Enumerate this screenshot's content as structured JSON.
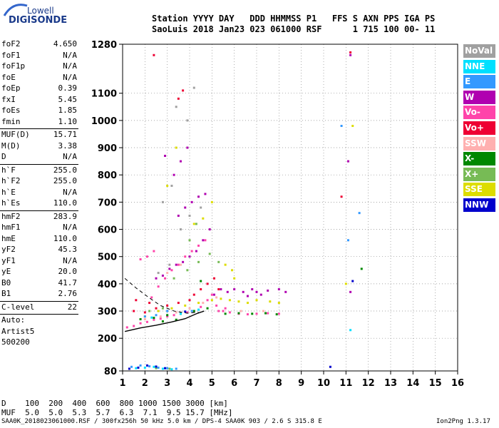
{
  "logo": {
    "line1": "Lowell",
    "line2": "DIGISONDE"
  },
  "header": {
    "row1": "Station YYYY DAY   DDD HHMMSS P1   FFS S AXN PPS IGA PS",
    "row2": "SaoLuis 2018 Jan23 023 061000 RSF      1 715 100 00- 11"
  },
  "params": [
    {
      "name": "foF2",
      "value": "4.650"
    },
    {
      "name": "foF1",
      "value": "N/A"
    },
    {
      "name": "foF1p",
      "value": "N/A"
    },
    {
      "name": "foE",
      "value": "N/A"
    },
    {
      "name": "foEp",
      "value": "0.39"
    },
    {
      "name": "fxI",
      "value": "5.45"
    },
    {
      "name": "foEs",
      "value": "1.85"
    },
    {
      "name": "fmin",
      "value": "1.10"
    },
    {
      "name": "MUF(D)",
      "value": "15.71"
    },
    {
      "name": "M(D)",
      "value": "3.38"
    },
    {
      "name": "D",
      "value": "N/A"
    },
    {
      "name": "h`F",
      "value": "255.0"
    },
    {
      "name": "h`F2",
      "value": "255.0"
    },
    {
      "name": "h`E",
      "value": "N/A"
    },
    {
      "name": "h`Es",
      "value": "110.0"
    },
    {
      "name": "hmF2",
      "value": "283.9"
    },
    {
      "name": "hmF1",
      "value": "N/A"
    },
    {
      "name": "hmE",
      "value": "110.0"
    },
    {
      "name": "yF2",
      "value": "45.3"
    },
    {
      "name": "yF1",
      "value": "N/A"
    },
    {
      "name": "yE",
      "value": "20.0"
    },
    {
      "name": "B0",
      "value": "41.7"
    },
    {
      "name": "B1",
      "value": "2.76"
    },
    {
      "name": "C-level",
      "value": "22"
    },
    {
      "name": "Auto:",
      "value": ""
    },
    {
      "name": "Artist5",
      "value": ""
    },
    {
      "name": "500200",
      "value": ""
    }
  ],
  "legend": [
    {
      "label": "NoVal",
      "color": "#a0a0a0"
    },
    {
      "label": "NNE",
      "color": "#00e0ff"
    },
    {
      "label": "E",
      "color": "#3399ff"
    },
    {
      "label": "W",
      "color": "#b000b0"
    },
    {
      "label": "Vo-",
      "color": "#ff44aa"
    },
    {
      "label": "Vo+",
      "color": "#ee0033"
    },
    {
      "label": "SSW",
      "color": "#ffb0b0"
    },
    {
      "label": "X-",
      "color": "#008800"
    },
    {
      "label": "X+",
      "color": "#77bb55"
    },
    {
      "label": "SSE",
      "color": "#dddd00"
    },
    {
      "label": "NNW",
      "color": "#0000cc"
    }
  ],
  "mufTable": {
    "dRow": "D    100  200  400  600  800 1000 1500 3000 [km]",
    "mufRow": "MUF  5.0  5.0  5.3  5.7  6.3  7.1  9.5 15.7 [MHz]"
  },
  "footer": {
    "left": "SAA0K_2018023061000.RSF / 300fx256h 50 kHz 5.0 km / DPS-4 SAA0K 903 / 2.6 S 315.8 E",
    "right": "Ion2Png 1.3.17"
  },
  "chart_data": {
    "type": "scatter",
    "title": "",
    "xlabel": "",
    "ylabel": "",
    "xlim": [
      1,
      16
    ],
    "ylim": [
      80,
      1280
    ],
    "xticks": [
      "1",
      "2",
      "3",
      "4",
      "5",
      "6",
      "7",
      "8",
      "9",
      "10",
      "11",
      "12",
      "13",
      "14",
      "15",
      "16"
    ],
    "yticks": [
      "80",
      "200",
      "300",
      "400",
      "500",
      "600",
      "700",
      "800",
      "900",
      "1000",
      "1100",
      "1280"
    ],
    "ytick_values": [
      80,
      200,
      300,
      400,
      500,
      600,
      700,
      800,
      900,
      1000,
      1100,
      1280
    ],
    "grid": true,
    "profile_line": [
      [
        1.1,
        225
      ],
      [
        1.8,
        238
      ],
      [
        2.5,
        248
      ],
      [
        3.2,
        260
      ],
      [
        3.8,
        272
      ],
      [
        4.3,
        290
      ],
      [
        4.65,
        300
      ]
    ],
    "dashed_line": [
      [
        1.1,
        420
      ],
      [
        1.6,
        385
      ],
      [
        2.2,
        348
      ],
      [
        2.7,
        320
      ],
      [
        3.3,
        300
      ],
      [
        3.9,
        292
      ],
      [
        4.4,
        296
      ]
    ],
    "series": [
      {
        "color": "#ff44aa",
        "points": [
          [
            1.2,
            240
          ],
          [
            1.5,
            245
          ],
          [
            1.8,
            255
          ],
          [
            2.1,
            260
          ],
          [
            2.4,
            268
          ],
          [
            2.7,
            272
          ],
          [
            3.0,
            280
          ],
          [
            3.3,
            285
          ],
          [
            3.6,
            290
          ],
          [
            3.9,
            295
          ],
          [
            4.2,
            300
          ],
          [
            4.5,
            315
          ],
          [
            4.8,
            340
          ],
          [
            5.0,
            360
          ],
          [
            5.2,
            320
          ],
          [
            5.5,
            300
          ],
          [
            5.8,
            295
          ],
          [
            6.2,
            290
          ],
          [
            6.6,
            288
          ],
          [
            7.0,
            290
          ],
          [
            7.5,
            292
          ],
          [
            8.0,
            290
          ],
          [
            2.3,
            350
          ],
          [
            2.6,
            390
          ],
          [
            2.9,
            420
          ],
          [
            3.2,
            450
          ],
          [
            3.5,
            470
          ],
          [
            3.8,
            500
          ],
          [
            4.1,
            520
          ],
          [
            4.4,
            540
          ],
          [
            4.7,
            560
          ],
          [
            1.8,
            490
          ],
          [
            2.1,
            500
          ],
          [
            2.4,
            520
          ],
          [
            5.3,
            300
          ],
          [
            5.6,
            310
          ]
        ]
      },
      {
        "color": "#b000b0",
        "points": [
          [
            2.5,
            420
          ],
          [
            2.8,
            430
          ],
          [
            3.1,
            455
          ],
          [
            3.4,
            470
          ],
          [
            3.7,
            480
          ],
          [
            4.0,
            500
          ],
          [
            4.3,
            520
          ],
          [
            4.6,
            560
          ],
          [
            4.9,
            600
          ],
          [
            5.1,
            360
          ],
          [
            5.4,
            380
          ],
          [
            5.7,
            370
          ],
          [
            6.0,
            380
          ],
          [
            6.4,
            370
          ],
          [
            6.8,
            380
          ],
          [
            7.0,
            370
          ],
          [
            7.5,
            375
          ],
          [
            8.0,
            380
          ],
          [
            8.3,
            370
          ],
          [
            7.2,
            360
          ],
          [
            6.6,
            355
          ],
          [
            3.5,
            650
          ],
          [
            3.8,
            680
          ],
          [
            4.1,
            700
          ],
          [
            4.4,
            720
          ],
          [
            4.7,
            730
          ],
          [
            3.3,
            800
          ],
          [
            3.6,
            850
          ],
          [
            3.9,
            900
          ],
          [
            2.9,
            870
          ],
          [
            11.1,
            850
          ],
          [
            11.2,
            1240
          ],
          [
            11.2,
            370
          ]
        ]
      },
      {
        "color": "#ee0033",
        "points": [
          [
            1.5,
            300
          ],
          [
            2.0,
            295
          ],
          [
            2.5,
            310
          ],
          [
            3.0,
            320
          ],
          [
            3.5,
            330
          ],
          [
            4.0,
            340
          ],
          [
            4.5,
            380
          ],
          [
            4.8,
            400
          ],
          [
            5.1,
            420
          ],
          [
            5.3,
            380
          ],
          [
            4.2,
            360
          ],
          [
            2.2,
            330
          ],
          [
            1.6,
            340
          ],
          [
            10.8,
            720
          ],
          [
            11.2,
            1250
          ],
          [
            3.5,
            1080
          ],
          [
            3.7,
            1110
          ],
          [
            2.4,
            1240
          ]
        ]
      },
      {
        "color": "#dddd00",
        "points": [
          [
            2.0,
            280
          ],
          [
            2.6,
            300
          ],
          [
            3.2,
            310
          ],
          [
            3.8,
            320
          ],
          [
            4.4,
            330
          ],
          [
            5.0,
            340
          ],
          [
            5.4,
            345
          ],
          [
            5.8,
            340
          ],
          [
            6.2,
            335
          ],
          [
            6.6,
            330
          ],
          [
            7.0,
            340
          ],
          [
            7.6,
            335
          ],
          [
            8.0,
            330
          ],
          [
            5.6,
            470
          ],
          [
            5.9,
            450
          ],
          [
            6.0,
            420
          ],
          [
            4.2,
            620
          ],
          [
            4.6,
            640
          ],
          [
            5.0,
            700
          ],
          [
            11.3,
            980
          ],
          [
            11.0,
            400
          ],
          [
            3.0,
            760
          ],
          [
            3.4,
            900
          ]
        ]
      },
      {
        "color": "#008800",
        "points": [
          [
            1.8,
            270
          ],
          [
            2.4,
            275
          ],
          [
            3.0,
            285
          ],
          [
            3.6,
            290
          ],
          [
            4.2,
            300
          ],
          [
            4.8,
            310
          ],
          [
            5.6,
            290
          ],
          [
            6.2,
            292
          ],
          [
            6.8,
            290
          ],
          [
            7.4,
            292
          ],
          [
            7.9,
            288
          ],
          [
            11.7,
            455
          ],
          [
            4.5,
            410
          ],
          [
            2.8,
            262
          ],
          [
            3.4,
            268
          ]
        ]
      },
      {
        "color": "#77bb55",
        "points": [
          [
            2.2,
            300
          ],
          [
            2.8,
            310
          ],
          [
            3.3,
            420
          ],
          [
            3.9,
            450
          ],
          [
            4.4,
            480
          ],
          [
            4.9,
            510
          ],
          [
            5.3,
            480
          ],
          [
            2.5,
            90
          ],
          [
            3.1,
            88
          ],
          [
            4.0,
            560
          ],
          [
            4.3,
            620
          ]
        ]
      },
      {
        "color": "#3399ff",
        "points": [
          [
            1.4,
            95
          ],
          [
            1.8,
            100
          ],
          [
            2.2,
            97
          ],
          [
            2.6,
            92
          ],
          [
            3.0,
            90
          ],
          [
            3.4,
            88
          ],
          [
            2.0,
            280
          ],
          [
            2.5,
            285
          ],
          [
            3.0,
            300
          ],
          [
            11.1,
            560
          ],
          [
            11.6,
            660
          ],
          [
            10.8,
            980
          ],
          [
            4.1,
            300
          ]
        ]
      },
      {
        "color": "#00e0ff",
        "points": [
          [
            1.6,
            90
          ],
          [
            2.0,
            92
          ],
          [
            2.4,
            95
          ],
          [
            2.8,
            88
          ],
          [
            3.2,
            86
          ],
          [
            11.2,
            230
          ],
          [
            3.6,
            290
          ],
          [
            4.4,
            305
          ],
          [
            2.3,
            276
          ]
        ]
      },
      {
        "color": "#0000cc",
        "points": [
          [
            1.3,
            88
          ],
          [
            1.7,
            92
          ],
          [
            2.1,
            100
          ],
          [
            2.5,
            96
          ],
          [
            2.9,
            90
          ],
          [
            10.3,
            95
          ],
          [
            11.3,
            410
          ],
          [
            3.8,
            298
          ]
        ]
      },
      {
        "color": "#ffb0b0",
        "points": [
          [
            2.0,
            270
          ],
          [
            2.7,
            280
          ],
          [
            3.4,
            295
          ],
          [
            4.0,
            310
          ],
          [
            4.6,
            330
          ],
          [
            5.2,
            350
          ],
          [
            6.3,
            300
          ],
          [
            7.3,
            300
          ],
          [
            3.0,
            440
          ],
          [
            3.6,
            470
          ]
        ]
      },
      {
        "color": "#a0a0a0",
        "points": [
          [
            2.6,
            440
          ],
          [
            3.1,
            470
          ],
          [
            3.6,
            600
          ],
          [
            4.0,
            650
          ],
          [
            4.5,
            680
          ],
          [
            3.4,
            1050
          ],
          [
            3.9,
            1000
          ],
          [
            4.2,
            1120
          ],
          [
            2.8,
            700
          ],
          [
            3.2,
            760
          ]
        ]
      }
    ]
  }
}
